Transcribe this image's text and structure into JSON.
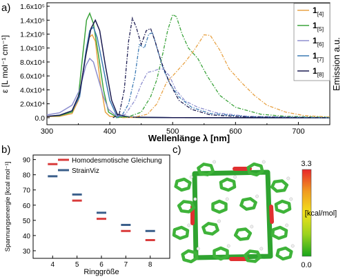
{
  "panels": {
    "a": {
      "label": "a)"
    },
    "b": {
      "label": "b)"
    },
    "c": {
      "label": "c)"
    }
  },
  "chart_data": [
    {
      "type": "line",
      "panel": "a)",
      "xlabel": "Wellenlänge λ [nm]",
      "ylabel": "ε [L mol⁻¹ cm⁻¹]",
      "y2label": "Emission a.u.",
      "xlim": [
        300,
        750
      ],
      "ylim": [
        -10000,
        165000
      ],
      "xticks": [
        300,
        400,
        500,
        600,
        700
      ],
      "yticks": [
        {
          "v": 0,
          "t": "0.0"
        },
        {
          "v": 20000,
          "t": "2.0x10⁴"
        },
        {
          "v": 40000,
          "t": "4.0x10⁴"
        },
        {
          "v": 60000,
          "t": "6.0x10⁴"
        },
        {
          "v": 80000,
          "t": "8.0x10⁴"
        },
        {
          "v": 100000,
          "t": "1.0x10⁵"
        },
        {
          "v": 120000,
          "t": "1.2x10⁵"
        },
        {
          "v": 140000,
          "t": "1.4x10⁵"
        },
        {
          "v": 160000,
          "t": "1.6x10⁵"
        }
      ],
      "legend_position": "top-right",
      "series": [
        {
          "name": "1[4]",
          "base": "1",
          "sub": "[4]",
          "color": "#e8a244",
          "absorption": [
            [
              300,
              1500
            ],
            [
              320,
              2000
            ],
            [
              340,
              6000
            ],
            [
              350,
              25000
            ],
            [
              360,
              80000
            ],
            [
              367,
              115000
            ],
            [
              372,
              119000
            ],
            [
              377,
              110000
            ],
            [
              385,
              50000
            ],
            [
              393,
              8000
            ],
            [
              400,
              2000
            ],
            [
              420,
              500
            ],
            [
              450,
              300
            ],
            [
              500,
              200
            ],
            [
              750,
              0
            ]
          ],
          "emission": [
            [
              420,
              0
            ],
            [
              440,
              1000
            ],
            [
              460,
              5000
            ],
            [
              475,
              20000
            ],
            [
              490,
              50000
            ],
            [
              500,
              60000
            ],
            [
              510,
              70000
            ],
            [
              520,
              80000
            ],
            [
              535,
              98000
            ],
            [
              550,
              119000
            ],
            [
              560,
              118000
            ],
            [
              575,
              97000
            ],
            [
              590,
              70000
            ],
            [
              610,
              50000
            ],
            [
              630,
              32000
            ],
            [
              650,
              18000
            ],
            [
              680,
              8000
            ],
            [
              710,
              3000
            ],
            [
              750,
              1000
            ]
          ]
        },
        {
          "name": "1[5]",
          "base": "1",
          "sub": "[5]",
          "color": "#3aa33a",
          "absorption": [
            [
              300,
              2000
            ],
            [
              320,
              3000
            ],
            [
              340,
              8000
            ],
            [
              350,
              30000
            ],
            [
              357,
              90000
            ],
            [
              363,
              140000
            ],
            [
              368,
              150000
            ],
            [
              374,
              135000
            ],
            [
              382,
              90000
            ],
            [
              390,
              40000
            ],
            [
              398,
              8000
            ],
            [
              410,
              1500
            ],
            [
              450,
              300
            ],
            [
              500,
              200
            ],
            [
              750,
              0
            ]
          ],
          "emission": [
            [
              410,
              0
            ],
            [
              430,
              1500
            ],
            [
              450,
              8000
            ],
            [
              465,
              30000
            ],
            [
              475,
              55000
            ],
            [
              485,
              95000
            ],
            [
              492,
              125000
            ],
            [
              500,
              148000
            ],
            [
              506,
              145000
            ],
            [
              515,
              120000
            ],
            [
              525,
              100000
            ],
            [
              540,
              85000
            ],
            [
              555,
              60000
            ],
            [
              575,
              32000
            ],
            [
              600,
              15000
            ],
            [
              640,
              5000
            ],
            [
              680,
              2000
            ],
            [
              750,
              500
            ]
          ]
        },
        {
          "name": "1[6]",
          "base": "1",
          "sub": "[6]",
          "color": "#8d8ecf",
          "absorption": [
            [
              300,
              4000
            ],
            [
              320,
              7000
            ],
            [
              340,
              18000
            ],
            [
              352,
              40000
            ],
            [
              362,
              75000
            ],
            [
              368,
              85000
            ],
            [
              374,
              80000
            ],
            [
              382,
              55000
            ],
            [
              390,
              30000
            ],
            [
              398,
              12000
            ],
            [
              410,
              3000
            ],
            [
              450,
              500
            ],
            [
              500,
              200
            ],
            [
              750,
              0
            ]
          ],
          "emission": [
            [
              410,
              0
            ],
            [
              425,
              5000
            ],
            [
              440,
              25000
            ],
            [
              450,
              48000
            ],
            [
              460,
              65000
            ],
            [
              470,
              67000
            ],
            [
              478,
              70000
            ],
            [
              485,
              70000
            ],
            [
              495,
              60000
            ],
            [
              505,
              40000
            ],
            [
              520,
              24000
            ],
            [
              540,
              15000
            ],
            [
              570,
              7000
            ],
            [
              620,
              2000
            ],
            [
              750,
              0
            ]
          ]
        },
        {
          "name": "1[7]",
          "base": "1",
          "sub": "[7]",
          "color": "#3c7ab4",
          "absorption": [
            [
              300,
              2000
            ],
            [
              320,
              3500
            ],
            [
              340,
              10000
            ],
            [
              352,
              30000
            ],
            [
              362,
              95000
            ],
            [
              368,
              125000
            ],
            [
              374,
              130000
            ],
            [
              380,
              115000
            ],
            [
              390,
              70000
            ],
            [
              400,
              25000
            ],
            [
              410,
              5000
            ],
            [
              430,
              1000
            ],
            [
              500,
              200
            ],
            [
              750,
              0
            ]
          ],
          "emission": [
            [
              410,
              0
            ],
            [
              420,
              4000
            ],
            [
              430,
              20000
            ],
            [
              440,
              60000
            ],
            [
              447,
              105000
            ],
            [
              455,
              100000
            ],
            [
              462,
              120000
            ],
            [
              468,
              122000
            ],
            [
              475,
              100000
            ],
            [
              485,
              70000
            ],
            [
              495,
              50000
            ],
            [
              510,
              30000
            ],
            [
              530,
              15000
            ],
            [
              560,
              6000
            ],
            [
              620,
              1500
            ],
            [
              750,
              0
            ]
          ]
        },
        {
          "name": "1[8]",
          "base": "1",
          "sub": "[8]",
          "color": "#1a1a50",
          "absorption": [
            [
              300,
              2000
            ],
            [
              320,
              3500
            ],
            [
              340,
              10000
            ],
            [
              352,
              35000
            ],
            [
              362,
              90000
            ],
            [
              370,
              128000
            ],
            [
              377,
              140000
            ],
            [
              384,
              125000
            ],
            [
              393,
              75000
            ],
            [
              403,
              25000
            ],
            [
              412,
              5000
            ],
            [
              430,
              800
            ],
            [
              500,
              200
            ],
            [
              750,
              0
            ]
          ],
          "emission": [
            [
              405,
              0
            ],
            [
              415,
              5000
            ],
            [
              423,
              40000
            ],
            [
              430,
              110000
            ],
            [
              436,
              143000
            ],
            [
              442,
              130000
            ],
            [
              450,
              105000
            ],
            [
              458,
              125000
            ],
            [
              465,
              128000
            ],
            [
              472,
              110000
            ],
            [
              482,
              80000
            ],
            [
              495,
              50000
            ],
            [
              510,
              25000
            ],
            [
              530,
              12000
            ],
            [
              560,
              4000
            ],
            [
              620,
              1000
            ],
            [
              750,
              0
            ]
          ]
        }
      ]
    },
    {
      "type": "scatter",
      "panel": "b)",
      "xlabel": "Ringgröße",
      "ylabel": "Spannungsenergie [kcal mol⁻¹]",
      "xlim": [
        3.2,
        8.8
      ],
      "ylim": [
        25,
        93
      ],
      "xticks": [
        4,
        5,
        6,
        7,
        8
      ],
      "yticks": [
        30,
        40,
        50,
        60,
        70,
        80,
        90
      ],
      "legend_position": "top-right",
      "x": [
        4,
        5,
        6,
        7,
        8
      ],
      "series": [
        {
          "name": "Homodesmotische Gleichung",
          "color": "#d93b3b",
          "values": [
            87,
            63,
            51,
            43,
            37
          ]
        },
        {
          "name": "StrainViz",
          "color": "#3a5e8a",
          "values": [
            79,
            67,
            55,
            47,
            43
          ]
        }
      ]
    }
  ],
  "colorbar": {
    "max_label": "3.3",
    "min_label": "0.0",
    "unit_label": "[kcal/mol]",
    "colors": [
      "#19a61c",
      "#9bd21f",
      "#f2e21b",
      "#f09a20",
      "#e8262a"
    ]
  },
  "molecule": {
    "corner_bond_color": "#e03030"
  }
}
